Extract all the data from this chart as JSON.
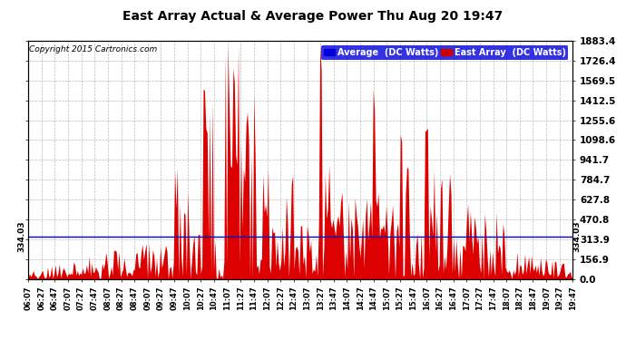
{
  "title": "East Array Actual & Average Power Thu Aug 20 19:47",
  "copyright": "Copyright 2015 Cartronics.com",
  "yticks": [
    0.0,
    156.9,
    313.9,
    470.8,
    627.8,
    784.7,
    941.7,
    1098.6,
    1255.6,
    1412.5,
    1569.5,
    1726.4,
    1883.4
  ],
  "ymax": 1883.4,
  "ymin": 0.0,
  "average_line_y": 334.03,
  "legend_labels": [
    "Average  (DC Watts)",
    "East Array  (DC Watts)"
  ],
  "legend_colors": [
    "#0000dd",
    "#cc0000"
  ],
  "background_color": "#ffffff",
  "plot_bg_color": "#ffffff",
  "grid_color": "#aaaaaa",
  "line_color_east": "#dd0000",
  "line_color_avg": "#0000cc",
  "xtick_labels": [
    "06:07",
    "06:27",
    "06:47",
    "07:07",
    "07:27",
    "07:47",
    "08:07",
    "08:27",
    "08:47",
    "09:07",
    "09:27",
    "09:47",
    "10:07",
    "10:27",
    "10:47",
    "11:07",
    "11:27",
    "11:47",
    "12:07",
    "12:27",
    "12:47",
    "13:07",
    "13:27",
    "13:47",
    "14:07",
    "14:27",
    "14:47",
    "15:07",
    "15:27",
    "15:47",
    "16:07",
    "16:27",
    "16:47",
    "17:07",
    "17:27",
    "17:47",
    "18:07",
    "18:27",
    "18:47",
    "19:07",
    "19:27",
    "19:47"
  ],
  "num_points": 421
}
